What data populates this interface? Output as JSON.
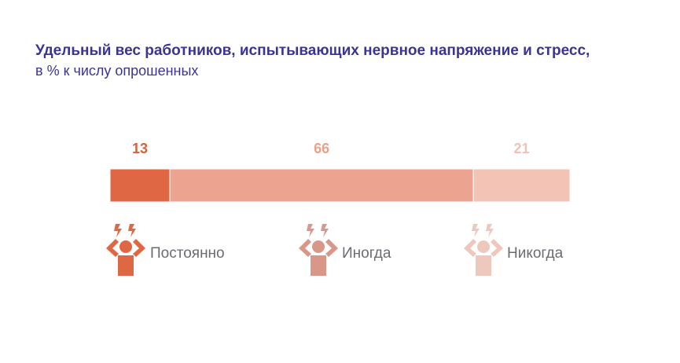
{
  "title": "Удельный вес работников, испытывающих нервное напряжение и стресс,",
  "subtitle": "в % к числу опрошенных",
  "chart_data": {
    "type": "bar",
    "orientation": "horizontal-stacked-100",
    "title": "Удельный вес работников, испытывающих нервное напряжение и стресс,",
    "subtitle": "в % к числу опрошенных",
    "categories": [
      "Постоянно",
      "Иногда",
      "Никогда"
    ],
    "values": [
      13,
      66,
      21
    ],
    "colors": [
      "#e06744",
      "#eca491",
      "#f3c4b6"
    ],
    "icon_colors": [
      "#e06744",
      "#d9978a",
      "#eec8bd"
    ],
    "label_colors": [
      "#d9603f",
      "#e9a18c",
      "#f1c3b5"
    ],
    "icon": "stressed-person-icon",
    "legend_placement": "bottom",
    "grid": false,
    "xlim": [
      0,
      100
    ]
  }
}
